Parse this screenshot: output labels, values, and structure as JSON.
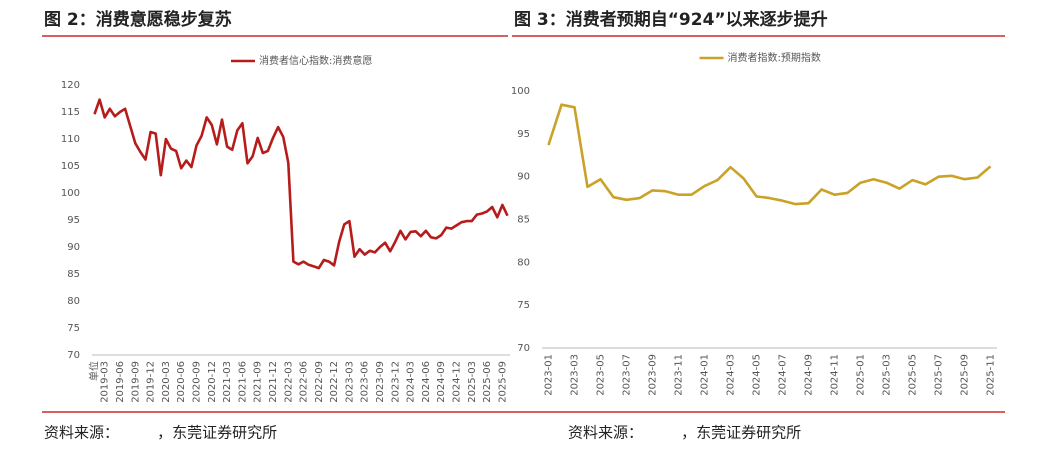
{
  "chart_data": [
    {
      "type": "line",
      "title": "图 2：消费意愿稳步复苏",
      "source": "资料来源：        ，东莞证券研究所",
      "categories": [
        "单位",
        null,
        "2019-03",
        null,
        null,
        "2019-06",
        null,
        null,
        "2019-09",
        null,
        null,
        "2019-12",
        null,
        null,
        "2020-03",
        null,
        null,
        "2020-06",
        null,
        null,
        "2020-09",
        null,
        null,
        "2020-12",
        null,
        null,
        "2021-03",
        null,
        null,
        "2021-06",
        null,
        null,
        "2021-09",
        null,
        null,
        "2021-12",
        null,
        null,
        "2022-03",
        null,
        null,
        "2022-06",
        null,
        null,
        "2022-09",
        null,
        null,
        "2022-12",
        null,
        null,
        "2023-03",
        null,
        null,
        "2023-06",
        null,
        null,
        "2023-09",
        null,
        null,
        "2023-12",
        null,
        null,
        "2024-03",
        null,
        null,
        "2024-06",
        null,
        null,
        "2024-09",
        null,
        null,
        "2024-12",
        null,
        null,
        "2025-03",
        null,
        null,
        "2025-06",
        null,
        null,
        "2025-09",
        null
      ],
      "series": [
        {
          "name": "消费者信心指数:消费意愿",
          "color": "#b71c1c",
          "values": [
            114.6,
            117.3,
            114.0,
            115.6,
            114.2,
            115.0,
            115.6,
            112.4,
            109.2,
            107.6,
            106.2,
            111.3,
            111.0,
            103.3,
            110.0,
            108.2,
            107.8,
            104.6,
            106.0,
            104.8,
            108.8,
            110.6,
            114.0,
            112.6,
            109.0,
            113.6,
            108.6,
            108.0,
            111.6,
            112.9,
            105.5,
            106.8,
            110.2,
            107.4,
            107.8,
            110.2,
            112.2,
            110.4,
            105.6,
            87.3,
            86.8,
            87.3,
            86.7,
            86.4,
            86.1,
            87.6,
            87.3,
            86.6,
            91.0,
            94.2,
            94.8,
            88.2,
            89.6,
            88.6,
            89.3,
            89.0,
            90.0,
            90.8,
            89.2,
            91.0,
            93.0,
            91.4,
            92.8,
            92.9,
            92.0,
            93.0,
            91.8,
            91.6,
            92.2,
            93.6,
            93.4,
            94.0,
            94.6,
            94.8,
            94.8,
            96.0,
            96.2,
            96.6,
            97.4,
            95.5,
            97.8,
            95.8
          ]
        }
      ],
      "ylim": [
        70,
        120
      ],
      "yticks": [
        70,
        75,
        80,
        85,
        90,
        95,
        100,
        105,
        110,
        115,
        120
      ],
      "legend": "top"
    },
    {
      "type": "line",
      "title": "图 3：消费者预期自“924”以来逐步提升",
      "source": "资料来源：        ，东莞证券研究所",
      "categories": [
        "2023-01",
        null,
        "2023-03",
        null,
        "2023-05",
        null,
        "2023-07",
        null,
        "2023-09",
        null,
        "2023-11",
        null,
        "2024-01",
        null,
        "2024-03",
        null,
        "2024-05",
        null,
        "2024-07",
        null,
        "2024-09",
        null,
        "2024-11",
        null,
        "2025-01",
        null,
        "2025-03",
        null,
        "2025-05",
        null,
        "2025-07",
        null,
        "2025-09",
        null,
        "2025-11"
      ],
      "series": [
        {
          "name": "消费者指数:预期指数",
          "color": "#c9a227",
          "values": [
            93.7,
            98.4,
            98.1,
            88.8,
            89.7,
            87.6,
            87.3,
            87.5,
            88.4,
            88.3,
            87.9,
            87.9,
            88.9,
            89.6,
            91.1,
            89.8,
            87.7,
            87.5,
            87.2,
            86.8,
            86.9,
            88.5,
            87.9,
            88.1,
            89.3,
            89.7,
            89.3,
            88.6,
            89.6,
            89.1,
            90.0,
            90.1,
            89.7,
            89.9,
            91.2
          ]
        }
      ],
      "ylim": [
        70,
        100
      ],
      "yticks": [
        70,
        75,
        80,
        85,
        90,
        95,
        100
      ],
      "legend": "top"
    }
  ]
}
